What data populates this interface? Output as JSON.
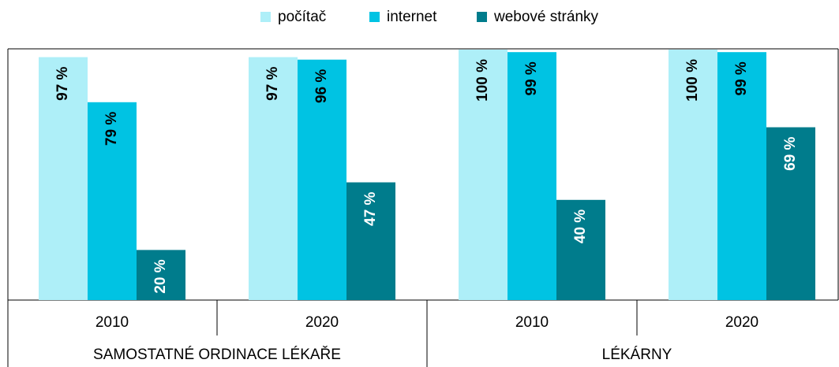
{
  "chart_data": {
    "type": "bar",
    "categories": [
      "2010",
      "2020",
      "2010",
      "2020"
    ],
    "category_groups": [
      "SAMOSTATNÉ ORDINACE LÉKAŘE",
      "LÉKÁRNY"
    ],
    "series": [
      {
        "name": "počítač",
        "color": "#aeeff8",
        "label_color": "#000000",
        "values": [
          97,
          97,
          100,
          100
        ],
        "value_labels": [
          "97 %",
          "97 %",
          "100 %",
          "100 %"
        ]
      },
      {
        "name": "internet",
        "color": "#00c3e3",
        "label_color": "#000000",
        "values": [
          79,
          96,
          99,
          99
        ],
        "value_labels": [
          "79 %",
          "96 %",
          "99 %",
          "99 %"
        ]
      },
      {
        "name": "webové stránky",
        "color": "#007c8c",
        "label_color": "#ffffff",
        "values": [
          20,
          47,
          40,
          69
        ],
        "value_labels": [
          "20 %",
          "47 %",
          "40 %",
          "69 %"
        ]
      }
    ],
    "ylim": [
      0,
      100
    ],
    "legend": "top"
  }
}
